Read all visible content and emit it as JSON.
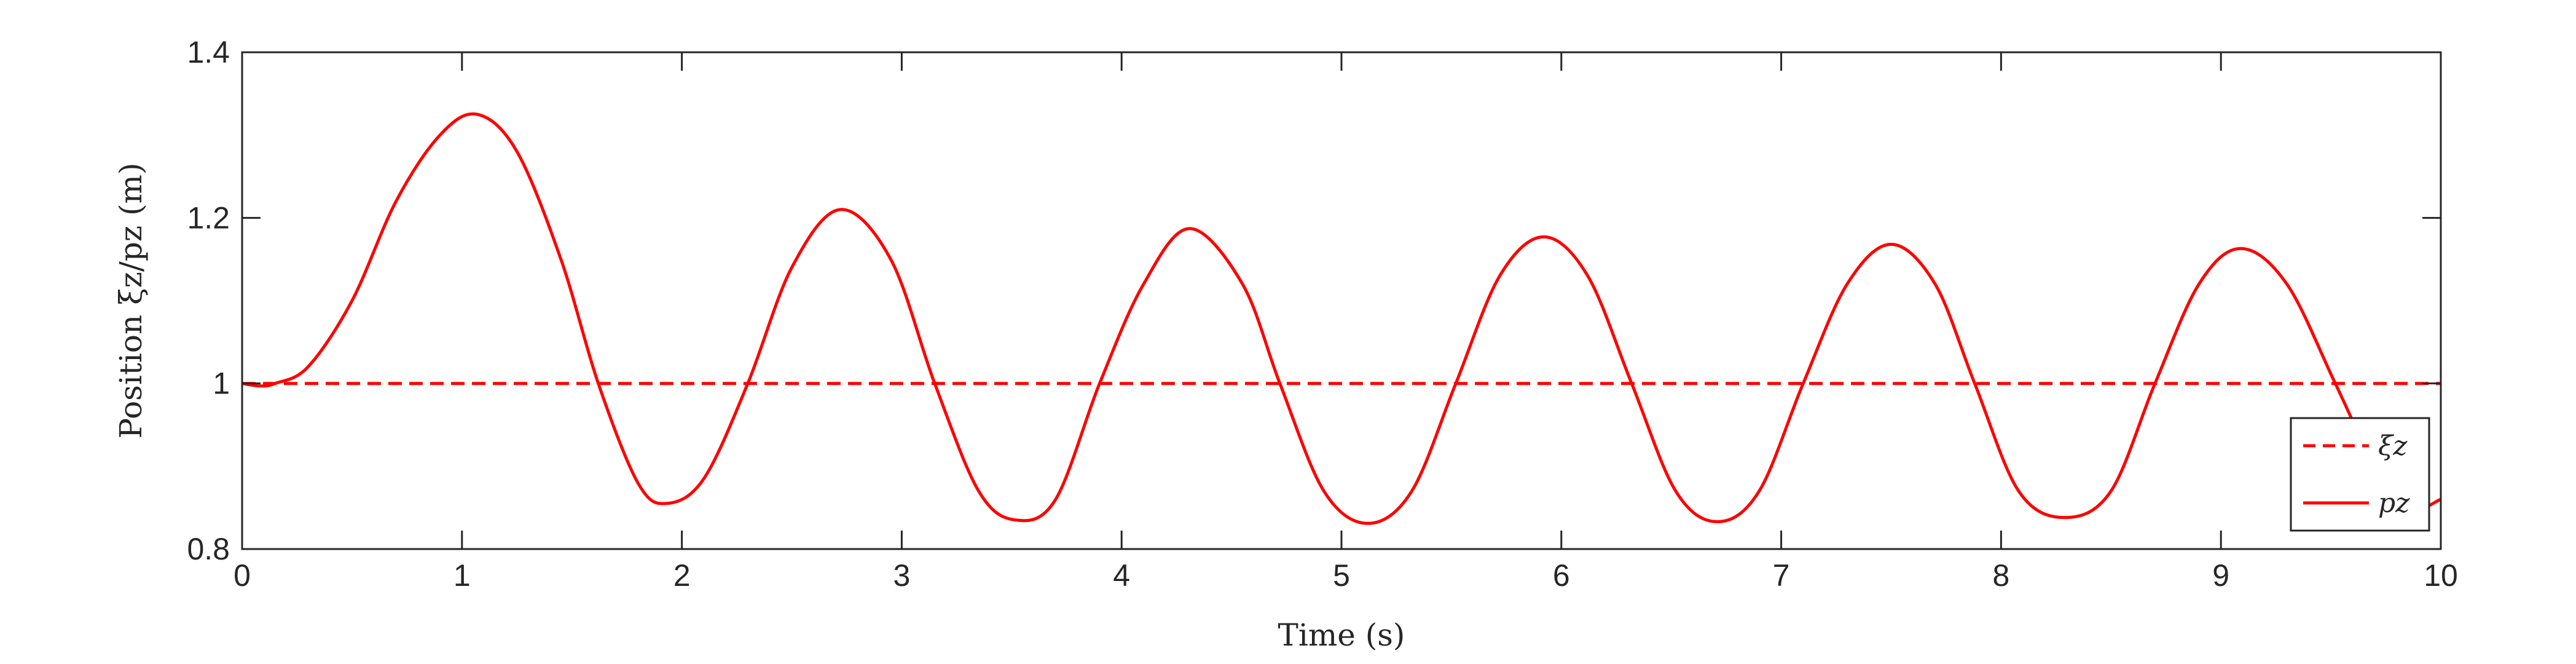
{
  "chart_data": {
    "type": "line",
    "xlabel": "Time (s)",
    "ylabel": "Position ξz/pz (m)",
    "xlim": [
      0,
      10
    ],
    "ylim": [
      0.8,
      1.4
    ],
    "x_ticks": [
      0,
      1,
      2,
      3,
      4,
      5,
      6,
      7,
      8,
      9,
      10
    ],
    "x_tick_labels": [
      "0",
      "1",
      "2",
      "3",
      "4",
      "5",
      "6",
      "7",
      "8",
      "9",
      "10"
    ],
    "y_ticks": [
      0.8,
      1.0,
      1.2,
      1.4
    ],
    "y_tick_labels": [
      "0.8",
      "1",
      "1.2",
      "1.4"
    ],
    "grid": false,
    "legend_position": "bottom-right",
    "color": "#ff0000",
    "series": [
      {
        "name": "ξz",
        "style": "dashed",
        "x": [
          0,
          10
        ],
        "y": [
          1.0,
          1.0
        ]
      },
      {
        "name": "pz",
        "style": "solid",
        "x": [
          0,
          0.08,
          0.15,
          0.3,
          0.5,
          0.7,
          0.9,
          1.07,
          1.25,
          1.45,
          1.62,
          1.8,
          1.93,
          2.1,
          2.3,
          2.5,
          2.72,
          2.95,
          3.15,
          3.35,
          3.52,
          3.7,
          3.9,
          4.1,
          4.31,
          4.55,
          4.72,
          4.92,
          5.12,
          5.32,
          5.52,
          5.72,
          5.92,
          6.12,
          6.32,
          6.52,
          6.71,
          6.9,
          7.1,
          7.3,
          7.5,
          7.7,
          7.88,
          8.08,
          8.29,
          8.5,
          8.7,
          8.9,
          9.09,
          9.3,
          9.52,
          9.7,
          9.85,
          10.0
        ],
        "y": [
          1.0,
          0.997,
          1.0,
          1.02,
          1.1,
          1.22,
          1.3,
          1.325,
          1.28,
          1.15,
          1.0,
          0.88,
          0.855,
          0.885,
          1.0,
          1.14,
          1.21,
          1.15,
          1.0,
          0.87,
          0.835,
          0.86,
          1.0,
          1.12,
          1.187,
          1.12,
          1.0,
          0.87,
          0.831,
          0.87,
          1.0,
          1.13,
          1.177,
          1.13,
          1.0,
          0.87,
          0.833,
          0.87,
          1.0,
          1.12,
          1.168,
          1.12,
          1.0,
          0.87,
          0.838,
          0.87,
          1.0,
          1.12,
          1.163,
          1.12,
          1.0,
          0.9,
          0.848,
          0.86
        ]
      }
    ]
  }
}
